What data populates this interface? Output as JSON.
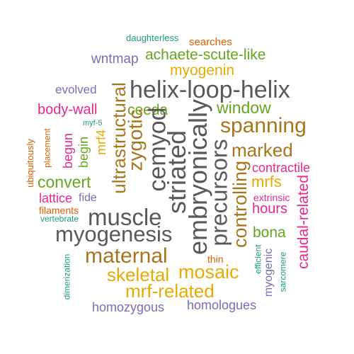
{
  "words": [
    {
      "text": "daughterless",
      "color": "#1b9e77"
    },
    {
      "text": "searches",
      "color": "#d95f02"
    },
    {
      "text": "wntmap",
      "color": "#7570b3"
    },
    {
      "text": "achaete-scute-like",
      "color": "#66a61e"
    },
    {
      "text": "myogenin",
      "color": "#e6ab02"
    },
    {
      "text": "evolved",
      "color": "#7570b3"
    },
    {
      "text": "helix-loop-helix",
      "color": "#595959"
    },
    {
      "text": "body-wall",
      "color": "#e7298a"
    },
    {
      "text": "ceeda",
      "color": "#66a61e"
    },
    {
      "text": "window",
      "color": "#66a61e"
    },
    {
      "text": "myf-5",
      "color": "#1b9e77"
    },
    {
      "text": "spanning",
      "color": "#a6761d"
    },
    {
      "text": "marked",
      "color": "#a6761d"
    },
    {
      "text": "contractile",
      "color": "#e7298a"
    },
    {
      "text": "convert",
      "color": "#66a61e"
    },
    {
      "text": "mrfs",
      "color": "#e6ab02"
    },
    {
      "text": "lattice",
      "color": "#e7298a"
    },
    {
      "text": "fide",
      "color": "#7570b3"
    },
    {
      "text": "extrinsic",
      "color": "#e7298a"
    },
    {
      "text": "filaments",
      "color": "#d95f02"
    },
    {
      "text": "hours",
      "color": "#e7298a"
    },
    {
      "text": "vertebrate",
      "color": "#1b9e77"
    },
    {
      "text": "muscle",
      "color": "#595959"
    },
    {
      "text": "myogenesis",
      "color": "#595959"
    },
    {
      "text": "bona",
      "color": "#66a61e"
    },
    {
      "text": "maternal",
      "color": "#a6761d"
    },
    {
      "text": "thin",
      "color": "#d95f02"
    },
    {
      "text": "mosaic",
      "color": "#e6ab02"
    },
    {
      "text": "skeletal",
      "color": "#e6ab02"
    },
    {
      "text": "mrf-related",
      "color": "#e6ab02"
    },
    {
      "text": "homozygous",
      "color": "#7570b3"
    },
    {
      "text": "homologues",
      "color": "#7570b3"
    },
    {
      "text": "ubiquitously",
      "color": "#d95f02"
    },
    {
      "text": "placement",
      "color": "#d95f02"
    },
    {
      "text": "begun",
      "color": "#e7298a"
    },
    {
      "text": "begin",
      "color": "#66a61e"
    },
    {
      "text": "mrf4",
      "color": "#e6ab02"
    },
    {
      "text": "ultrastructural",
      "color": "#a6761d"
    },
    {
      "text": "zygotic",
      "color": "#a6761d"
    },
    {
      "text": "cemyod",
      "color": "#595959"
    },
    {
      "text": "striated",
      "color": "#595959"
    },
    {
      "text": "embryonically",
      "color": "#595959"
    },
    {
      "text": "precursors",
      "color": "#595959"
    },
    {
      "text": "controlling",
      "color": "#a6761d"
    },
    {
      "text": "dimerization",
      "color": "#1b9e77"
    },
    {
      "text": "efficient",
      "color": "#1b9e77"
    },
    {
      "text": "myogenic",
      "color": "#7570b3"
    },
    {
      "text": "sarcomere",
      "color": "#1b9e77"
    },
    {
      "text": "caudal-related",
      "color": "#e7298a"
    }
  ]
}
